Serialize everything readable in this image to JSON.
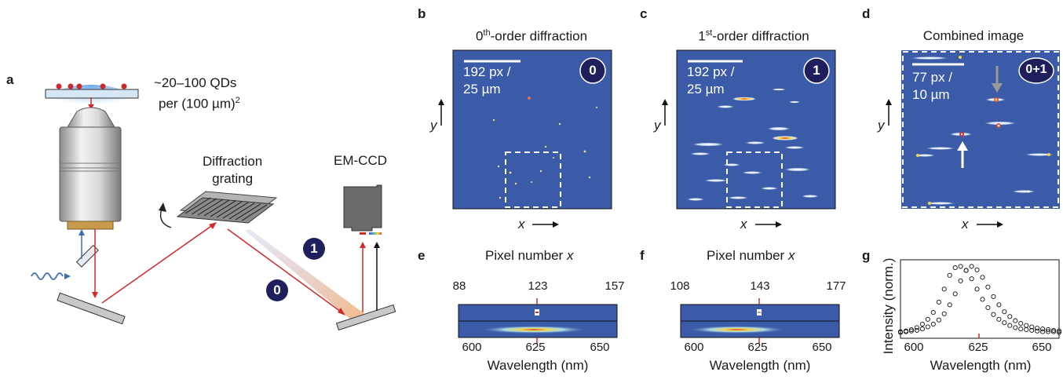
{
  "panels": {
    "a": {
      "label": "a",
      "qd_density_line1": "~20–100 QDs",
      "qd_density_line2": "per (100 µm)",
      "qd_density_sup": "2",
      "grating_line1": "Diffraction",
      "grating_line2": "grating",
      "detector": "EM-CCD",
      "order_1": "1",
      "order_0": "0"
    },
    "b": {
      "label": "b",
      "title_pre": "0",
      "title_sup": "th",
      "title_post": "-order diffraction",
      "scale_line1": "192 px /",
      "scale_line2": "25 µm",
      "badge": "0",
      "y_label": "y",
      "x_label": "x"
    },
    "c": {
      "label": "c",
      "title_pre": "1",
      "title_sup": "st",
      "title_post": "-order diffraction",
      "scale_line1": "192 px /",
      "scale_line2": "25 µm",
      "badge": "1",
      "y_label": "y",
      "x_label": "x"
    },
    "d": {
      "label": "d",
      "title": "Combined image",
      "scale_line1": "77 px /",
      "scale_line2": "10 µm",
      "badge": "0+1",
      "y_label": "y",
      "x_label": "x"
    },
    "e": {
      "label": "e",
      "top_axis_label": "Pixel number x",
      "top_ticks": [
        "88",
        "123",
        "157"
      ],
      "bottom_ticks": [
        "600",
        "625",
        "650"
      ],
      "xlabel": "Wavelength (nm)"
    },
    "f": {
      "label": "f",
      "top_axis_label": "Pixel number x",
      "top_ticks": [
        "108",
        "143",
        "177"
      ],
      "bottom_ticks": [
        "600",
        "625",
        "650"
      ],
      "xlabel": "Wavelength (nm)"
    },
    "g": {
      "label": "g",
      "ylabel": "Intensity (norm.)",
      "xlabel": "Wavelength (nm)",
      "ticks": [
        "600",
        "625",
        "650"
      ]
    }
  },
  "colors": {
    "image_bg": "#3b5ba8",
    "beam": "#d6282b",
    "badge": "#1f1f5e"
  },
  "chart_data": {
    "type": "scatter",
    "xlim": [
      596,
      654
    ],
    "ylim": [
      0,
      1.05
    ],
    "series": [
      {
        "x": [
          596,
          598,
          600,
          602,
          604,
          606,
          608,
          610,
          612,
          614,
          616,
          618,
          620,
          622,
          624,
          626,
          628,
          630,
          632,
          634,
          636,
          638,
          640,
          642,
          644,
          646,
          648,
          650,
          652,
          654
        ],
        "values": [
          0.05,
          0.06,
          0.08,
          0.11,
          0.16,
          0.23,
          0.33,
          0.48,
          0.67,
          0.87,
          0.98,
          1.0,
          0.94,
          0.82,
          0.67,
          0.52,
          0.4,
          0.3,
          0.23,
          0.18,
          0.14,
          0.11,
          0.09,
          0.08,
          0.07,
          0.06,
          0.05,
          0.05,
          0.05,
          0.04
        ]
      },
      {
        "x": [
          596,
          598,
          600,
          602,
          604,
          606,
          608,
          610,
          612,
          614,
          616,
          618,
          620,
          622,
          624,
          626,
          628,
          630,
          632,
          634,
          636,
          638,
          640,
          642,
          644,
          646,
          648,
          650,
          652,
          654
        ],
        "values": [
          0.04,
          0.05,
          0.06,
          0.07,
          0.09,
          0.12,
          0.16,
          0.22,
          0.31,
          0.44,
          0.6,
          0.79,
          0.94,
          1.0,
          0.95,
          0.84,
          0.7,
          0.56,
          0.44,
          0.34,
          0.27,
          0.21,
          0.17,
          0.14,
          0.12,
          0.1,
          0.09,
          0.08,
          0.07,
          0.06
        ]
      }
    ],
    "xlabel": "Wavelength (nm)",
    "ylabel": "Intensity (norm.)"
  }
}
